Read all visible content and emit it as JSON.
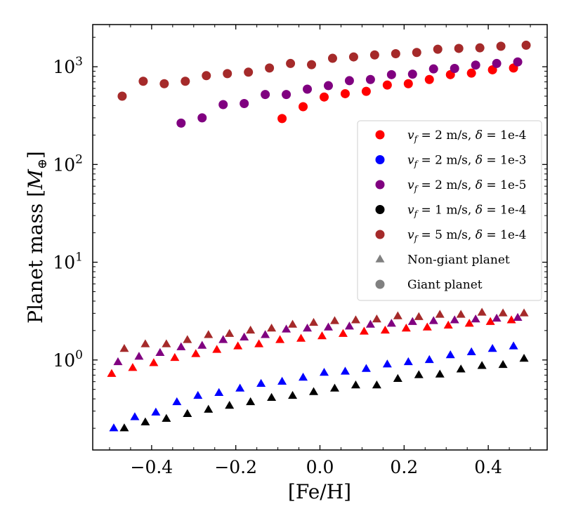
{
  "chart_data": {
    "type": "scatter",
    "title": "",
    "xlabel": "[Fe/H]",
    "ylabel": "Planet mass [M⊕]",
    "xlim": [
      -0.54,
      0.54
    ],
    "ylim": [
      0.12,
      2700
    ],
    "yscale": "log",
    "x_ticks": [
      -0.4,
      -0.2,
      0.0,
      0.2,
      0.4
    ],
    "x_tick_labels": [
      "−0.4",
      "−0.2",
      "0.0",
      "0.2",
      "0.4"
    ],
    "y_ticks": [
      {
        "value": 1,
        "base": "10",
        "exp": "0"
      },
      {
        "value": 10,
        "base": "10",
        "exp": "1"
      },
      {
        "value": 100,
        "base": "10",
        "exp": "2"
      },
      {
        "value": 1000,
        "base": "10",
        "exp": "3"
      }
    ],
    "legend_position": "right",
    "series": [
      {
        "name": "v_f = 2 m/s, δ = 1e-4",
        "legend": {
          "v": "v",
          "sub": "f",
          "rest": " = 2 m/s, ",
          "delta": "δ",
          "drest": " = 1e-4"
        },
        "color": "#ff0000",
        "non_giant": {
          "x": [
            -0.495,
            -0.445,
            -0.395,
            -0.345,
            -0.295,
            -0.245,
            -0.195,
            -0.145,
            -0.095,
            -0.045,
            0.005,
            0.055,
            0.105,
            0.155,
            0.205,
            0.255,
            0.305,
            0.355,
            0.405,
            0.455
          ],
          "y": [
            0.72,
            0.83,
            0.93,
            1.05,
            1.15,
            1.27,
            1.38,
            1.45,
            1.6,
            1.65,
            1.75,
            1.85,
            1.95,
            2.0,
            2.1,
            2.15,
            2.25,
            2.35,
            2.45,
            2.55
          ]
        },
        "giant": {
          "x": [
            -0.09,
            -0.04,
            0.01,
            0.06,
            0.11,
            0.16,
            0.21,
            0.26,
            0.31,
            0.36,
            0.41,
            0.46
          ],
          "y": [
            295,
            390,
            490,
            530,
            560,
            650,
            670,
            740,
            830,
            860,
            930,
            970
          ]
        }
      },
      {
        "name": "v_f = 2 m/s, δ = 1e-3",
        "legend": {
          "v": "v",
          "sub": "f",
          "rest": " = 2 m/s, ",
          "delta": "δ",
          "drest": " = 1e-3"
        },
        "color": "#0000ff",
        "non_giant": {
          "x": [
            -0.49,
            -0.44,
            -0.39,
            -0.34,
            -0.29,
            -0.24,
            -0.19,
            -0.14,
            -0.09,
            -0.04,
            0.01,
            0.06,
            0.11,
            0.16,
            0.21,
            0.26,
            0.31,
            0.36,
            0.41,
            0.46
          ],
          "y": [
            0.2,
            0.26,
            0.29,
            0.37,
            0.43,
            0.46,
            0.51,
            0.57,
            0.6,
            0.66,
            0.74,
            0.76,
            0.81,
            0.9,
            0.95,
            1.0,
            1.12,
            1.2,
            1.3,
            1.38
          ]
        },
        "giant": {
          "x": [],
          "y": []
        }
      },
      {
        "name": "v_f = 2 m/s, δ = 1e-5",
        "legend": {
          "v": "v",
          "sub": "f",
          "rest": " = 2 m/s, ",
          "delta": "δ",
          "drest": " = 1e-5"
        },
        "color": "#800080",
        "non_giant": {
          "x": [
            -0.48,
            -0.43,
            -0.38,
            -0.33,
            -0.28,
            -0.23,
            -0.18,
            -0.13,
            -0.08,
            -0.03,
            0.02,
            0.07,
            0.12,
            0.17,
            0.22,
            0.27,
            0.32,
            0.37,
            0.42,
            0.47
          ],
          "y": [
            0.95,
            1.08,
            1.18,
            1.35,
            1.4,
            1.6,
            1.7,
            1.8,
            2.05,
            2.1,
            2.15,
            2.2,
            2.3,
            2.35,
            2.45,
            2.5,
            2.55,
            2.6,
            2.65,
            2.7
          ]
        },
        "giant": {
          "x": [
            -0.33,
            -0.28,
            -0.23,
            -0.18,
            -0.13,
            -0.08,
            -0.03,
            0.02,
            0.07,
            0.12,
            0.17,
            0.22,
            0.27,
            0.32,
            0.37,
            0.42,
            0.47
          ],
          "y": [
            265,
            300,
            410,
            420,
            520,
            520,
            590,
            640,
            720,
            740,
            830,
            840,
            950,
            960,
            1040,
            1080,
            1120
          ]
        }
      },
      {
        "name": "v_f = 1 m/s, δ = 1e-4",
        "legend": {
          "v": "v",
          "sub": "f",
          "rest": " = 1 m/s, ",
          "delta": "δ",
          "drest": " = 1e-4"
        },
        "color": "#000000",
        "non_giant": {
          "x": [
            -0.465,
            -0.415,
            -0.365,
            -0.315,
            -0.265,
            -0.215,
            -0.165,
            -0.115,
            -0.065,
            -0.015,
            0.035,
            0.085,
            0.135,
            0.185,
            0.235,
            0.285,
            0.335,
            0.385,
            0.435,
            0.485
          ],
          "y": [
            0.2,
            0.23,
            0.25,
            0.28,
            0.31,
            0.34,
            0.37,
            0.41,
            0.43,
            0.47,
            0.51,
            0.55,
            0.55,
            0.64,
            0.7,
            0.71,
            0.8,
            0.87,
            0.89,
            1.03
          ]
        },
        "giant": {
          "x": [],
          "y": []
        }
      },
      {
        "name": "v_f = 5 m/s, δ = 1e-4",
        "legend": {
          "v": "v",
          "sub": "f",
          "rest": " = 5 m/s, ",
          "delta": "δ",
          "drest": " = 1e-4"
        },
        "color": "#a52a2a",
        "non_giant": {
          "x": [
            -0.465,
            -0.415,
            -0.365,
            -0.315,
            -0.265,
            -0.215,
            -0.165,
            -0.115,
            -0.065,
            -0.015,
            0.035,
            0.085,
            0.135,
            0.185,
            0.235,
            0.285,
            0.335,
            0.385,
            0.435,
            0.485
          ],
          "y": [
            1.3,
            1.45,
            1.45,
            1.6,
            1.8,
            1.85,
            2.0,
            2.1,
            2.3,
            2.4,
            2.5,
            2.55,
            2.6,
            2.8,
            2.75,
            2.9,
            2.9,
            3.05,
            3.0,
            3.0
          ]
        },
        "giant": {
          "x": [
            -0.47,
            -0.42,
            -0.37,
            -0.32,
            -0.27,
            -0.22,
            -0.17,
            -0.12,
            -0.07,
            -0.02,
            0.03,
            0.08,
            0.13,
            0.18,
            0.23,
            0.28,
            0.33,
            0.38,
            0.43,
            0.49
          ],
          "y": [
            500,
            710,
            670,
            710,
            810,
            850,
            880,
            970,
            1080,
            1050,
            1220,
            1260,
            1320,
            1360,
            1400,
            1510,
            1540,
            1560,
            1620,
            1660
          ]
        }
      }
    ],
    "marker_legend": [
      {
        "label": "Non-giant planet",
        "shape": "triangle",
        "color": "#808080"
      },
      {
        "label": "Giant planet",
        "shape": "circle",
        "color": "#808080"
      }
    ]
  }
}
